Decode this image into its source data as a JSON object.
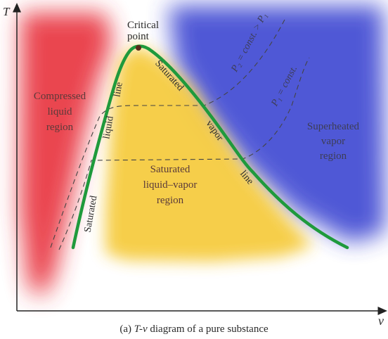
{
  "axes": {
    "y_label": "T",
    "x_label": "v"
  },
  "caption": {
    "prefix": "(a) ",
    "italic_part": "T-v",
    "suffix": " diagram of a pure substance"
  },
  "critical_point": [
    "Critical",
    "point"
  ],
  "regions": {
    "compressed": [
      "Compressed",
      "liquid",
      "region"
    ],
    "superheated": [
      "Superheated",
      "vapor",
      "region"
    ],
    "two_phase": [
      "Saturated",
      "liquid–vapor",
      "region"
    ]
  },
  "curve_labels": {
    "sat_liquid_1": "Saturated",
    "sat_liquid_2": "liquid",
    "sat_liquid_3": "line",
    "sat_vapor_1": "Saturated",
    "sat_vapor_2": "vapor",
    "sat_vapor_3": "line"
  },
  "isobars": {
    "p2": "P₂ = const. > P₁",
    "p1": "P₁ = const."
  },
  "colors": {
    "compressed_region": "#e8323c",
    "two_phase_region": "#f5c832",
    "superheated_region": "#3c46d2",
    "saturation_curve": "#1f9a3c",
    "critical_point": "#5a2a1a"
  }
}
